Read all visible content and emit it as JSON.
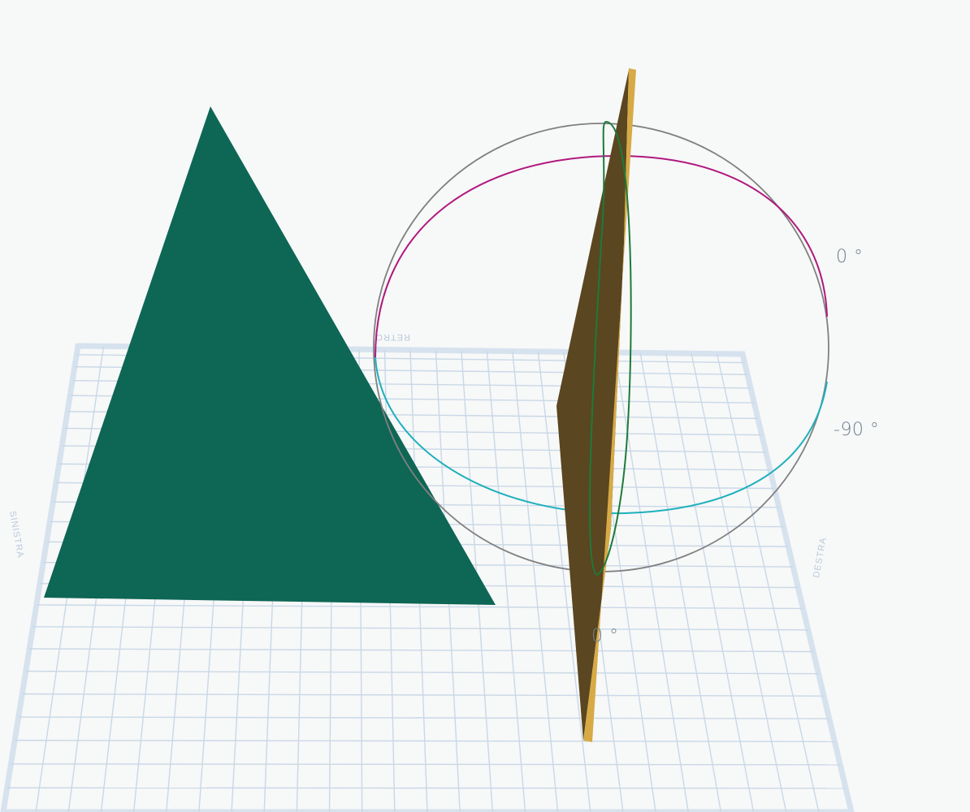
{
  "scene": {
    "labels": {
      "rotate_y_top": "0 °",
      "rotate_y_side": "-90 °",
      "rotate_x_bottom": "0 °"
    },
    "workplane_labels": {
      "back": "RETRO",
      "right": "DESTRA",
      "left": "SINISTRA"
    },
    "colors": {
      "background": "#f7f8f8",
      "grid_line": "#c9d8e7",
      "grid_border": "#d6e2ee",
      "pyramid": "#0e6655",
      "plate_front": "#d7aa45",
      "plate_side": "#5a4620",
      "rotation_ring_outer": "#808080",
      "rotation_ring_magenta": "#b0187e",
      "rotation_ring_cyan": "#1fb0bd",
      "rotation_ring_green": "#1d7a3a"
    },
    "objects": {
      "pyramid": "pyramid-shape",
      "plate": "vertical-plate-shape"
    }
  }
}
